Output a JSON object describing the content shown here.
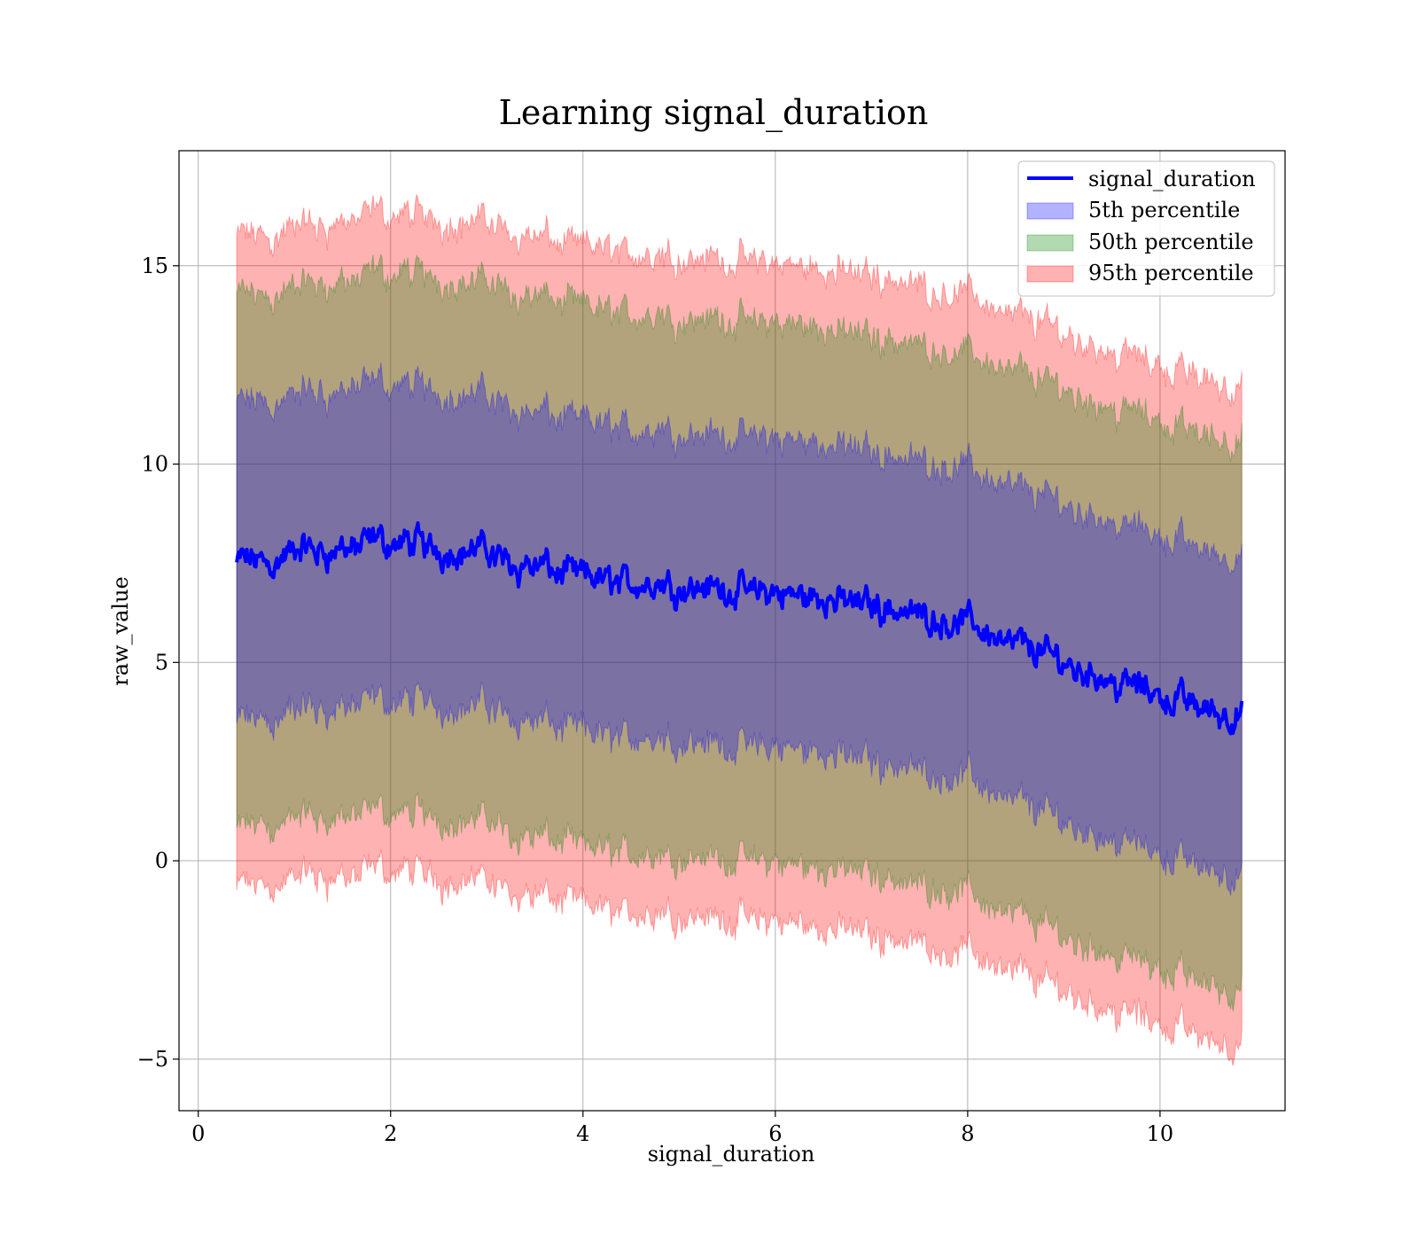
{
  "chart_data": {
    "type": "area",
    "title": "Learning signal_duration",
    "xlabel": "signal_duration",
    "ylabel": "raw_value",
    "xlim": [
      -0.2,
      11.3
    ],
    "ylim": [
      -6.3,
      17.9
    ],
    "x_ticks": [
      0,
      2,
      4,
      6,
      8,
      10
    ],
    "y_ticks": [
      -5,
      0,
      5,
      10,
      15
    ],
    "x_tick_labels": [
      "0",
      "2",
      "4",
      "6",
      "8",
      "10"
    ],
    "y_tick_labels": [
      "−5",
      "0",
      "5",
      "10",
      "15"
    ],
    "grid": true,
    "legend_position": "top-right",
    "x_range": [
      0.4,
      10.85
    ],
    "center_line": {
      "x": [
        0.4,
        1.0,
        2.0,
        3.0,
        4.0,
        5.0,
        6.0,
        7.0,
        8.0,
        9.0,
        10.0,
        10.85
      ],
      "y": [
        7.5,
        7.7,
        8.0,
        7.8,
        7.1,
        7.0,
        6.7,
        6.5,
        6.0,
        5.0,
        4.2,
        3.6
      ]
    },
    "series": [
      {
        "name": "signal_duration",
        "kind": "line",
        "color": "#0000ff"
      },
      {
        "name": "5th percentile",
        "kind": "band",
        "color": "#0000ff",
        "half_width": [
          4.0,
          4.0,
          4.0,
          3.9,
          3.9,
          3.9,
          3.9,
          3.9,
          3.9,
          4.0,
          4.0,
          4.0
        ]
      },
      {
        "name": "50th percentile",
        "kind": "band",
        "color": "#008000",
        "half_width": [
          6.7,
          6.7,
          6.8,
          6.8,
          6.8,
          6.8,
          6.8,
          6.8,
          6.8,
          6.9,
          6.9,
          6.9
        ]
      },
      {
        "name": "95th percentile",
        "kind": "band",
        "color": "#ff0000",
        "half_width": [
          8.2,
          8.2,
          8.3,
          8.3,
          8.3,
          8.3,
          8.3,
          8.3,
          8.3,
          8.3,
          8.3,
          8.3
        ]
      }
    ]
  }
}
